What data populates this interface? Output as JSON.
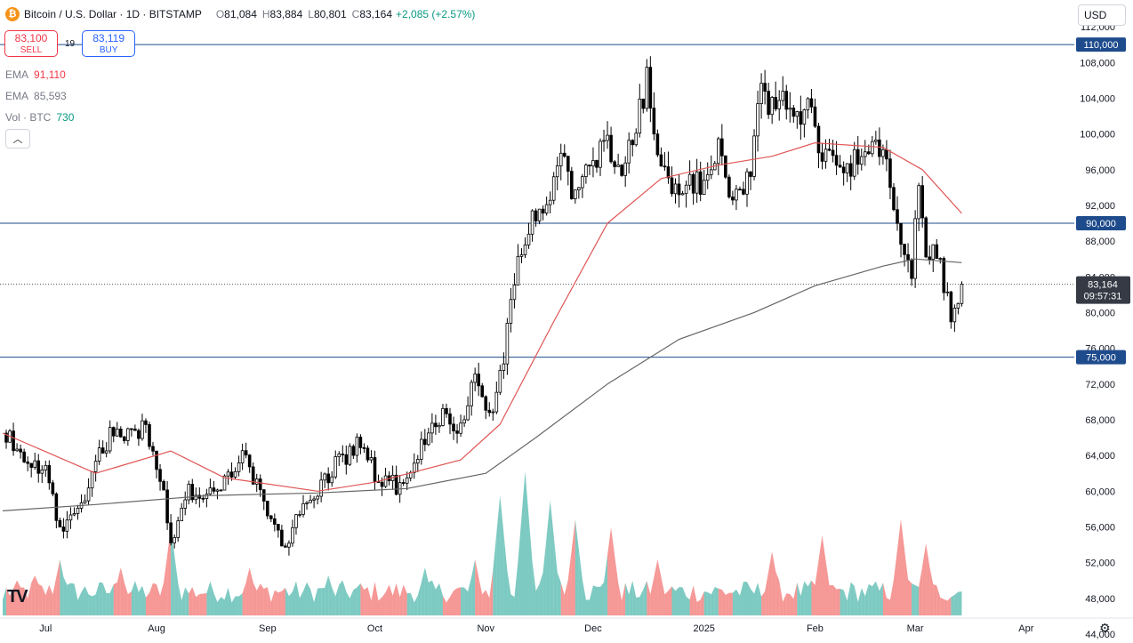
{
  "header": {
    "symbol": "Bitcoin / U.S. Dollar · 1D · BITSTAMP",
    "o_label": "O",
    "o_value": "81,084",
    "h_label": "H",
    "h_value": "83,884",
    "l_label": "L",
    "l_value": "80,801",
    "c_label": "C",
    "c_value": "83,164",
    "change": "+2,085 (+2.57%)"
  },
  "trade": {
    "sell_price": "83,100",
    "sell_label": "SELL",
    "spread": "19",
    "buy_price": "83,119",
    "buy_label": "BUY"
  },
  "indicators": [
    {
      "name": "EMA",
      "value": "91,110",
      "color": "#f23645"
    },
    {
      "name": "EMA",
      "value": "85,593",
      "color": "#787b86"
    },
    {
      "name": "Vol · BTC",
      "value": "730",
      "color": "#089981"
    }
  ],
  "currency": "USD",
  "price_box": {
    "price": "83,164",
    "countdown": "09:57:31"
  },
  "colors": {
    "up": "#26a69a",
    "down": "#ef5350",
    "candle": "#000000",
    "ema_fast": "#e05555",
    "ema_slow": "#666666",
    "level": "#1e4b8c"
  },
  "chart_data": {
    "type": "candlestick",
    "ylim": [
      43000,
      114000
    ],
    "y_ticks": [
      "112,000",
      "108,000",
      "104,000",
      "100,000",
      "96,000",
      "92,000",
      "88,000",
      "84,000",
      "80,000",
      "76,000",
      "72,000",
      "68,000",
      "64,000",
      "60,000",
      "56,000",
      "52,000",
      "48,000",
      "44,000"
    ],
    "y_tick_values": [
      112000,
      108000,
      104000,
      100000,
      96000,
      92000,
      88000,
      84000,
      80000,
      76000,
      72000,
      68000,
      64000,
      60000,
      56000,
      52000,
      48000,
      44000
    ],
    "x_ticks": [
      "Jul",
      "Aug",
      "Sep",
      "Oct",
      "Nov",
      "Dec",
      "2025",
      "Feb",
      "Mar",
      "Apr"
    ],
    "x_tick_dates": [
      "2024-07-01",
      "2024-08-01",
      "2024-09-01",
      "2024-10-01",
      "2024-11-01",
      "2024-12-01",
      "2025-01-01",
      "2025-02-01",
      "2025-03-01",
      "2025-04-01"
    ],
    "start_date": "2024-06-19",
    "horizontal_levels": [
      {
        "price": 110000,
        "label": "110,000"
      },
      {
        "price": 90000,
        "label": "90,000"
      },
      {
        "price": 75000,
        "label": "75,000"
      }
    ],
    "last_price": 83164,
    "close_series": [
      [
        "2024-06-20",
        66500
      ],
      [
        "2024-06-25",
        63000
      ],
      [
        "2024-07-01",
        62500
      ],
      [
        "2024-07-05",
        56000
      ],
      [
        "2024-07-10",
        57500
      ],
      [
        "2024-07-15",
        63500
      ],
      [
        "2024-07-20",
        67000
      ],
      [
        "2024-07-25",
        66000
      ],
      [
        "2024-07-29",
        67500
      ],
      [
        "2024-08-02",
        62000
      ],
      [
        "2024-08-05",
        54500
      ],
      [
        "2024-08-10",
        60000
      ],
      [
        "2024-08-15",
        59000
      ],
      [
        "2024-08-20",
        61000
      ],
      [
        "2024-08-25",
        64000
      ],
      [
        "2024-08-30",
        59500
      ],
      [
        "2024-09-06",
        54000
      ],
      [
        "2024-09-10",
        57500
      ],
      [
        "2024-09-15",
        60000
      ],
      [
        "2024-09-20",
        63000
      ],
      [
        "2024-09-27",
        65500
      ],
      [
        "2024-10-02",
        61000
      ],
      [
        "2024-10-10",
        60500
      ],
      [
        "2024-10-15",
        66000
      ],
      [
        "2024-10-20",
        69000
      ],
      [
        "2024-10-25",
        67000
      ],
      [
        "2024-10-29",
        72500
      ],
      [
        "2024-11-03",
        68500
      ],
      [
        "2024-11-06",
        75500
      ],
      [
        "2024-11-11",
        88000
      ],
      [
        "2024-11-13",
        90000
      ],
      [
        "2024-11-18",
        91500
      ],
      [
        "2024-11-22",
        99000
      ],
      [
        "2024-11-26",
        92500
      ],
      [
        "2024-12-01",
        97000
      ],
      [
        "2024-12-05",
        99000
      ],
      [
        "2024-12-10",
        96500
      ],
      [
        "2024-12-16",
        106000
      ],
      [
        "2024-12-19",
        97500
      ],
      [
        "2024-12-23",
        94000
      ],
      [
        "2024-12-28",
        94500
      ],
      [
        "2025-01-01",
        94000
      ],
      [
        "2025-01-05",
        98500
      ],
      [
        "2025-01-09",
        92500
      ],
      [
        "2025-01-13",
        94500
      ],
      [
        "2025-01-17",
        104000
      ],
      [
        "2025-01-22",
        103500
      ],
      [
        "2025-01-27",
        102000
      ],
      [
        "2025-01-31",
        102500
      ],
      [
        "2025-02-03",
        98000
      ],
      [
        "2025-02-08",
        96500
      ],
      [
        "2025-02-15",
        97500
      ],
      [
        "2025-02-20",
        98000
      ],
      [
        "2025-02-25",
        88500
      ],
      [
        "2025-02-28",
        84000
      ],
      [
        "2025-03-02",
        94500
      ],
      [
        "2025-03-04",
        87000
      ],
      [
        "2025-03-08",
        86000
      ],
      [
        "2025-03-11",
        78500
      ],
      [
        "2025-03-13",
        80500
      ],
      [
        "2025-03-14",
        83164
      ]
    ],
    "ema_fast": [
      [
        "2024-06-19",
        66500
      ],
      [
        "2024-07-15",
        62000
      ],
      [
        "2024-08-05",
        64500
      ],
      [
        "2024-08-20",
        61500
      ],
      [
        "2024-09-15",
        60000
      ],
      [
        "2024-10-01",
        61000
      ],
      [
        "2024-10-25",
        63500
      ],
      [
        "2024-11-05",
        67500
      ],
      [
        "2024-11-20",
        79000
      ],
      [
        "2024-12-05",
        90000
      ],
      [
        "2024-12-20",
        95000
      ],
      [
        "2025-01-05",
        96500
      ],
      [
        "2025-01-20",
        97500
      ],
      [
        "2025-02-01",
        99000
      ],
      [
        "2025-02-20",
        98500
      ],
      [
        "2025-03-03",
        96000
      ],
      [
        "2025-03-14",
        91110
      ]
    ],
    "ema_slow": [
      [
        "2024-06-19",
        57800
      ],
      [
        "2024-07-15",
        58500
      ],
      [
        "2024-08-15",
        59500
      ],
      [
        "2024-09-15",
        59800
      ],
      [
        "2024-10-10",
        60300
      ],
      [
        "2024-11-01",
        62000
      ],
      [
        "2024-11-15",
        66000
      ],
      [
        "2024-12-05",
        72000
      ],
      [
        "2024-12-25",
        77000
      ],
      [
        "2025-01-15",
        80000
      ],
      [
        "2025-02-01",
        83000
      ],
      [
        "2025-02-20",
        85200
      ],
      [
        "2025-03-01",
        86000
      ],
      [
        "2025-03-14",
        85593
      ]
    ],
    "volume_peaks": [
      [
        "2024-06-28",
        0.25
      ],
      [
        "2024-07-05",
        0.35
      ],
      [
        "2024-07-22",
        0.3
      ],
      [
        "2024-08-05",
        0.55
      ],
      [
        "2024-08-27",
        0.3
      ],
      [
        "2024-09-18",
        0.25
      ],
      [
        "2024-10-15",
        0.3
      ],
      [
        "2024-10-29",
        0.35
      ],
      [
        "2024-11-05",
        0.75
      ],
      [
        "2024-11-12",
        0.9
      ],
      [
        "2024-11-19",
        0.72
      ],
      [
        "2024-11-26",
        0.6
      ],
      [
        "2024-12-06",
        0.55
      ],
      [
        "2024-12-19",
        0.35
      ],
      [
        "2025-01-20",
        0.4
      ],
      [
        "2025-02-03",
        0.5
      ],
      [
        "2025-02-25",
        0.6
      ],
      [
        "2025-03-04",
        0.45
      ]
    ]
  }
}
